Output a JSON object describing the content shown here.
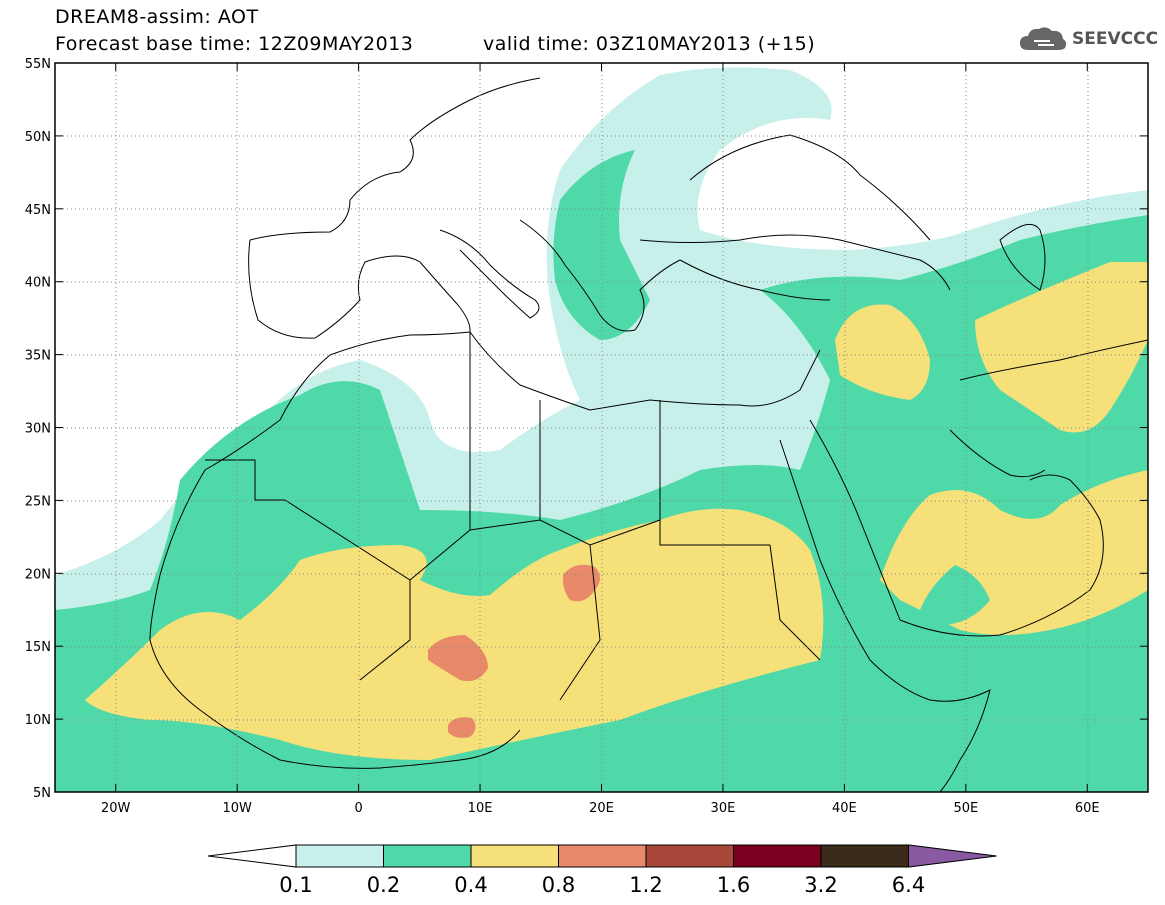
{
  "header": {
    "title": "DREAM8-assim: AOT",
    "base_time": "Forecast base time: 12Z09MAY2013",
    "valid_time": "valid time: 03Z10MAY2013 (+15)"
  },
  "logo": {
    "text": "SEEVCCC",
    "icon": "cloud-icon"
  },
  "map": {
    "lat_ticks": [
      "55N",
      "50N",
      "45N",
      "40N",
      "35N",
      "30N",
      "25N",
      "20N",
      "15N",
      "10N",
      "5N"
    ],
    "lon_ticks": [
      "20W",
      "10W",
      "0",
      "10E",
      "20E",
      "30E",
      "40E",
      "50E",
      "60E"
    ],
    "lon_range": [
      -25,
      65
    ],
    "lat_range": [
      5,
      55
    ]
  },
  "colorbar": {
    "levels": [
      "0.1",
      "0.2",
      "0.4",
      "0.8",
      "1.2",
      "1.6",
      "3.2",
      "6.4"
    ],
    "colors": [
      "#c8f0ea",
      "#4fd9a8",
      "#f5e07a",
      "#e8896a",
      "#a8483a",
      "#7a0020",
      "#3a2a1a",
      "#8a5aa0"
    ]
  }
}
